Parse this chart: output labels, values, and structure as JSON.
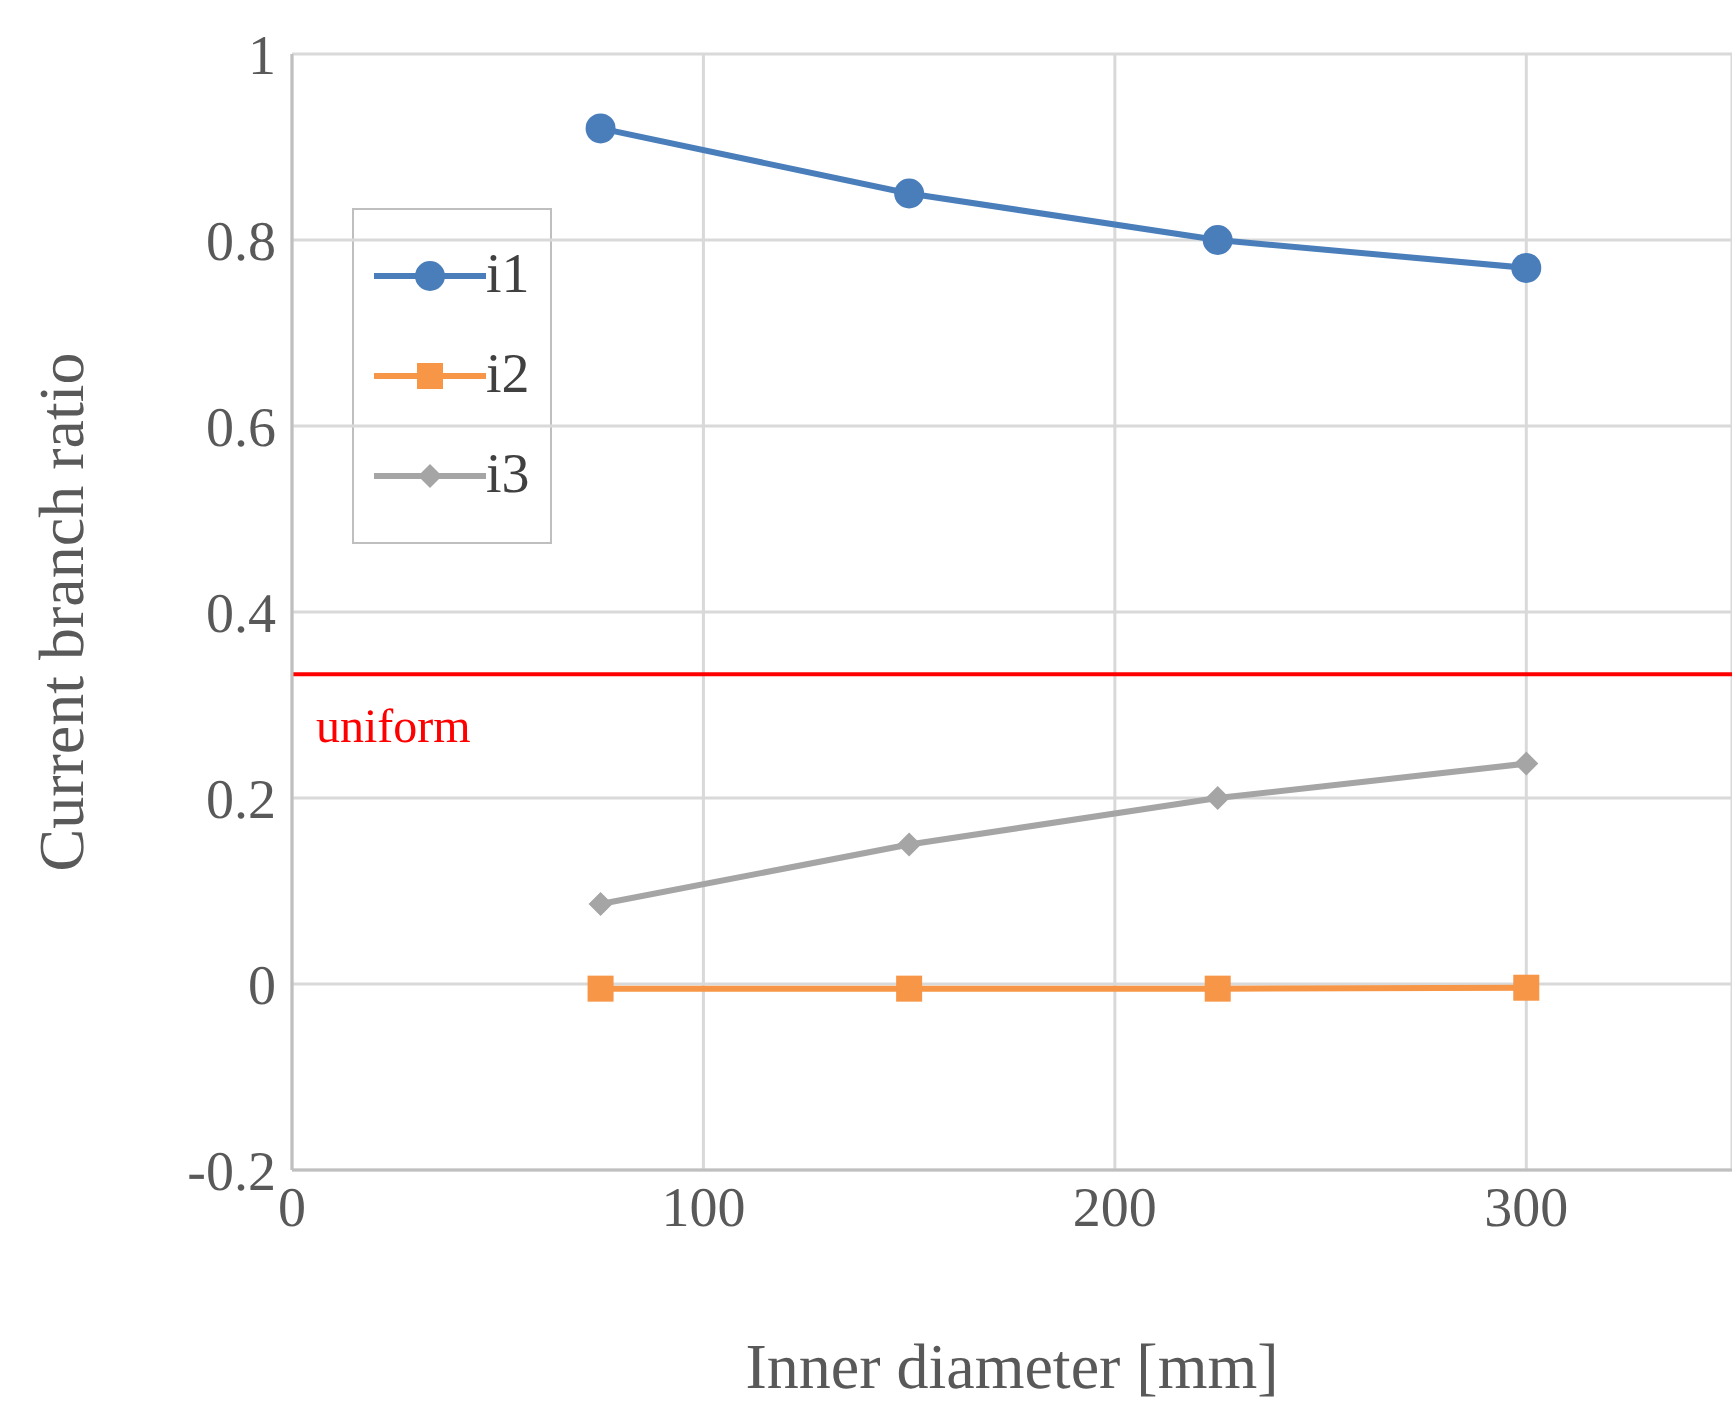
{
  "chart_data": {
    "type": "line",
    "xlabel": "Inner diameter [mm]",
    "ylabel": "Current branch ratio",
    "x": [
      75,
      150,
      225,
      300
    ],
    "series": [
      {
        "name": "i1",
        "color": "#4a7ebb",
        "marker": "circle",
        "values": [
          0.92,
          0.85,
          0.8,
          0.77
        ]
      },
      {
        "name": "i2",
        "color": "#f79646",
        "marker": "square",
        "values": [
          -0.005,
          -0.005,
          -0.005,
          -0.004
        ]
      },
      {
        "name": "i3",
        "color": "#a5a5a5",
        "marker": "diamond",
        "values": [
          0.086,
          0.15,
          0.2,
          0.237
        ]
      }
    ],
    "xlim": [
      0,
      350
    ],
    "xticks": [
      0,
      100,
      200,
      300
    ],
    "ylim": [
      -0.2,
      1
    ],
    "yticks": [
      -0.2,
      0,
      0.2,
      0.4,
      0.6,
      0.8,
      1
    ],
    "ref_lines": [
      {
        "axis": "y",
        "value": 0.333,
        "label": "uniform",
        "color": "#ff0000"
      }
    ],
    "grid": true,
    "legend": "top left",
    "line_style": "solid"
  }
}
